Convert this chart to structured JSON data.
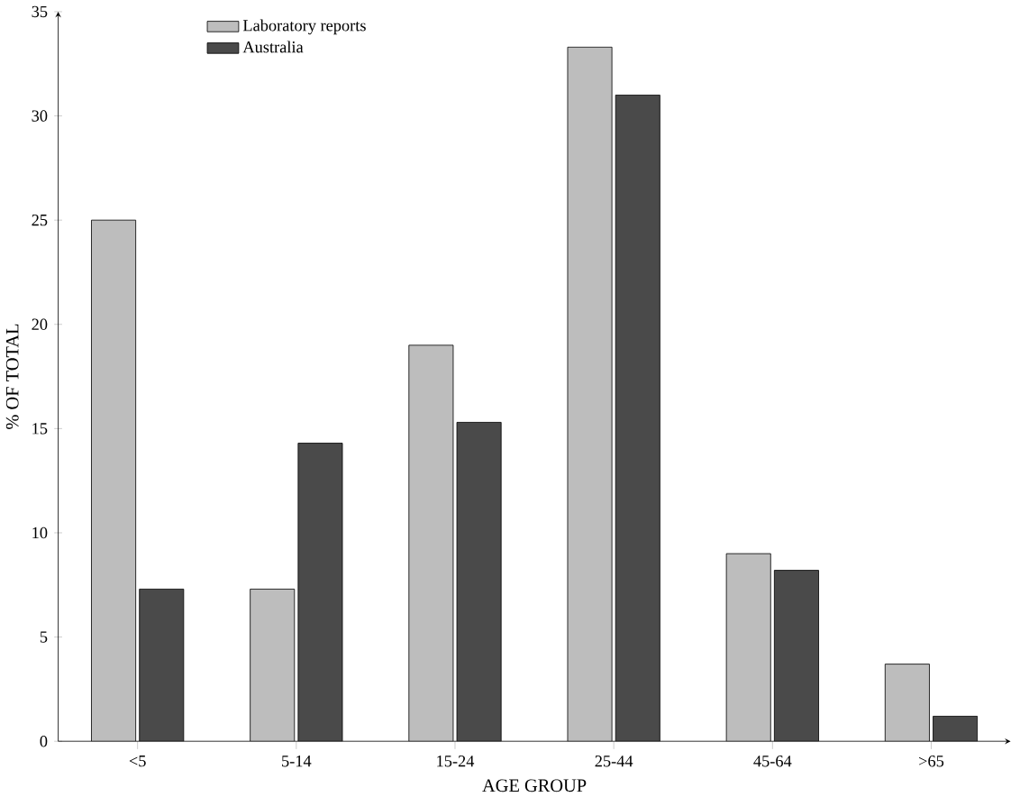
{
  "chart_data": {
    "type": "bar",
    "xlabel": "AGE GROUP",
    "ylabel": "% OF TOTAL",
    "categories": [
      "<5",
      "5-14",
      "15-24",
      "25-44",
      "45-64",
      ">65"
    ],
    "series": [
      {
        "name": "Laboratory reports",
        "color": "#bdbdbd",
        "values": [
          25,
          7.3,
          19,
          33.3,
          9,
          3.7
        ]
      },
      {
        "name": "Australia",
        "color": "#4a4a4a",
        "values": [
          7.3,
          14.3,
          15.3,
          31,
          8.2,
          1.2
        ]
      }
    ],
    "ylim": [
      0,
      35
    ],
    "yticks": [
      0,
      5,
      10,
      15,
      20,
      25,
      30,
      35
    ],
    "legend": "top left",
    "grid": false
  }
}
